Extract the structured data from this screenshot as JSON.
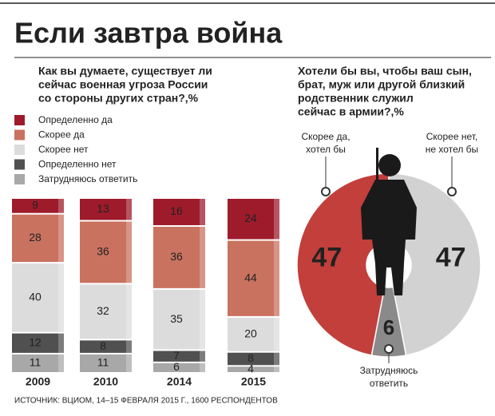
{
  "title": "Если завтра война",
  "source": "ИСТОЧНИК: ВЦИОМ, 14–15 ФЕВРАЛЯ 2015 Г., 1600 РЕСПОНДЕНТОВ",
  "chart_data": [
    {
      "type": "stacked_bar",
      "title": [
        "Как вы думаете, существует ли",
        "сейчас военная угроза России",
        "со стороны других стран?,%"
      ],
      "categories": [
        "2009",
        "2010",
        "2014",
        "2015"
      ],
      "series": [
        {
          "name": "Определенно да",
          "color": "#9e1b2b",
          "values": [
            9,
            13,
            16,
            24
          ]
        },
        {
          "name": "Скорее да",
          "color": "#c9725f",
          "values": [
            28,
            36,
            36,
            44
          ]
        },
        {
          "name": "Скорее нет",
          "color": "#dcdcdc",
          "values": [
            40,
            32,
            35,
            20
          ]
        },
        {
          "name": "Определенно нет",
          "color": "#505050",
          "values": [
            12,
            8,
            7,
            8
          ]
        },
        {
          "name": "Затрудняюсь ответить",
          "color": "#a8a8a8",
          "values": [
            11,
            11,
            6,
            4
          ]
        }
      ]
    },
    {
      "type": "donut",
      "title": [
        "Хотели бы вы, чтобы ваш сын,",
        "брат, муж или другой близкий",
        "родственник служил",
        "сейчас в армии?,%"
      ],
      "labels": [
        [
          "Скорее да,",
          "хотел бы"
        ],
        [
          "Скорее нет,",
          "не хотел бы"
        ],
        [
          "Затрудняюсь",
          "ответить"
        ]
      ],
      "values": [
        47,
        47,
        6
      ],
      "colors": [
        "#c23f3b",
        "#d2d2d2",
        "#8a8a8a"
      ]
    }
  ]
}
